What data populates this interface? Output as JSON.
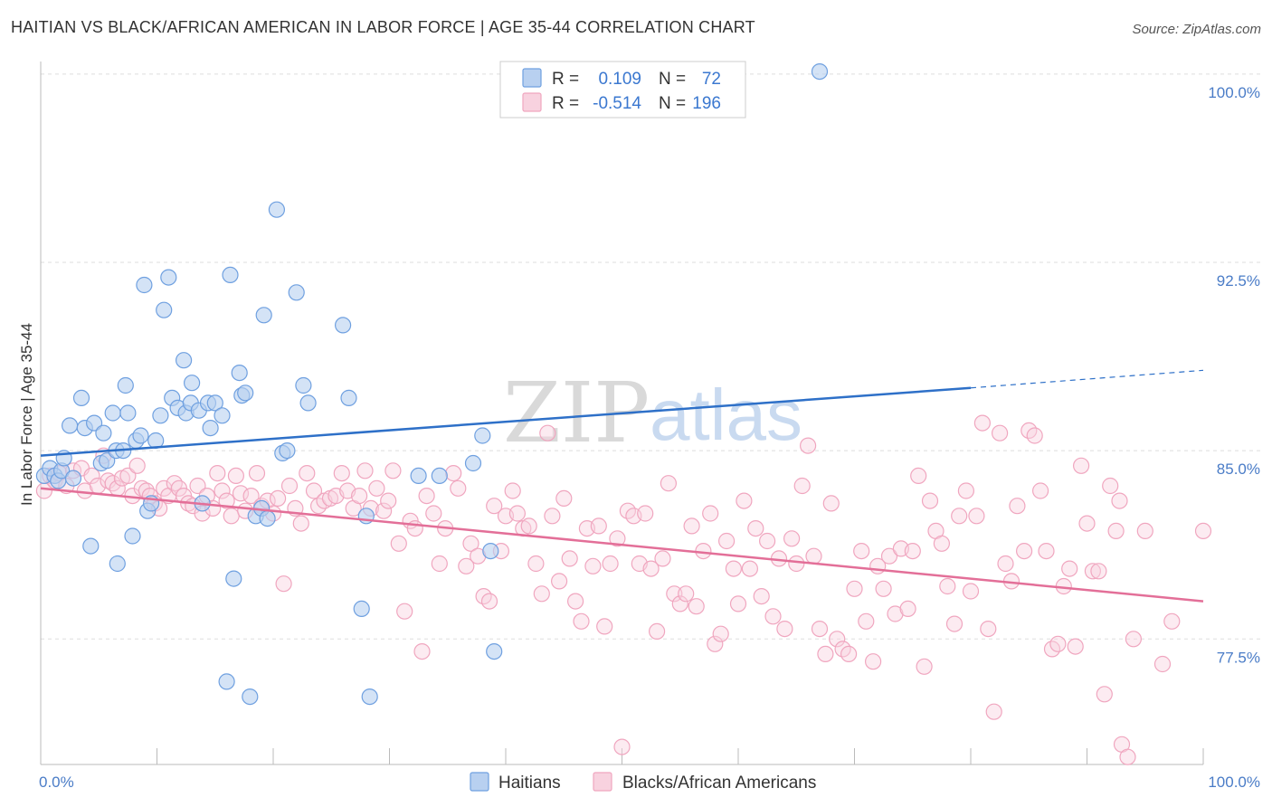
{
  "chart_data": {
    "type": "scatter",
    "title": "HAITIAN VS BLACK/AFRICAN AMERICAN IN LABOR FORCE | AGE 35-44 CORRELATION CHART",
    "source": "Source: ZipAtlas.com",
    "ylabel": "In Labor Force | Age 35-44",
    "xlabel": "",
    "xlim": [
      0,
      100
    ],
    "ylim": [
      72.5,
      100.5
    ],
    "x_tick_labels": [
      "0.0%",
      "100.0%"
    ],
    "y_ticks": [
      {
        "value": 100.0,
        "label": "100.0%"
      },
      {
        "value": 92.5,
        "label": "92.5%"
      },
      {
        "value": 85.0,
        "label": "85.0%"
      },
      {
        "value": 77.5,
        "label": "77.5%"
      }
    ],
    "watermark": {
      "part1": "ZIP",
      "part2": "atlas"
    },
    "legend": [
      {
        "r_label": "R =",
        "r_value": "0.109",
        "n_label": "N =",
        "n_value": "72"
      },
      {
        "r_label": "R =",
        "r_value": "-0.514",
        "n_label": "N =",
        "n_value": "196"
      }
    ],
    "series": [
      {
        "name": "Haitians",
        "color": "#6fa0e0",
        "fill": "#b8d0f0",
        "trend": {
          "x0": 0,
          "y0": 84.8,
          "x1": 80,
          "y1": 87.5,
          "dash_to": 100,
          "dash_y": 88.2,
          "color": "#2e70c8"
        },
        "points": [
          [
            0.3,
            84.0
          ],
          [
            0.8,
            84.3
          ],
          [
            1.2,
            84.0
          ],
          [
            1.5,
            83.8
          ],
          [
            1.8,
            84.2
          ],
          [
            2.0,
            84.7
          ],
          [
            2.5,
            86.0
          ],
          [
            2.8,
            83.9
          ],
          [
            3.5,
            87.1
          ],
          [
            3.8,
            85.9
          ],
          [
            4.3,
            81.2
          ],
          [
            4.6,
            86.1
          ],
          [
            5.2,
            84.5
          ],
          [
            5.4,
            85.7
          ],
          [
            5.7,
            84.6
          ],
          [
            6.2,
            86.5
          ],
          [
            6.5,
            85.0
          ],
          [
            6.6,
            80.5
          ],
          [
            7.1,
            85.0
          ],
          [
            7.3,
            87.6
          ],
          [
            7.5,
            86.5
          ],
          [
            7.9,
            81.6
          ],
          [
            8.2,
            85.4
          ],
          [
            8.6,
            85.6
          ],
          [
            8.9,
            91.6
          ],
          [
            9.2,
            82.6
          ],
          [
            9.5,
            82.9
          ],
          [
            9.9,
            85.4
          ],
          [
            10.3,
            86.4
          ],
          [
            10.6,
            90.6
          ],
          [
            11.0,
            91.9
          ],
          [
            11.3,
            87.1
          ],
          [
            11.8,
            86.7
          ],
          [
            12.3,
            88.6
          ],
          [
            12.5,
            86.5
          ],
          [
            12.9,
            86.9
          ],
          [
            13.0,
            87.7
          ],
          [
            13.6,
            86.6
          ],
          [
            13.9,
            82.9
          ],
          [
            14.4,
            86.9
          ],
          [
            14.6,
            85.9
          ],
          [
            15.0,
            86.9
          ],
          [
            15.6,
            86.4
          ],
          [
            16.0,
            75.8
          ],
          [
            16.3,
            92.0
          ],
          [
            16.6,
            79.9
          ],
          [
            17.1,
            88.1
          ],
          [
            17.3,
            87.2
          ],
          [
            17.6,
            87.3
          ],
          [
            18.0,
            75.2
          ],
          [
            18.5,
            82.4
          ],
          [
            19.0,
            82.7
          ],
          [
            19.2,
            90.4
          ],
          [
            19.5,
            82.3
          ],
          [
            20.3,
            94.6
          ],
          [
            20.8,
            84.9
          ],
          [
            21.2,
            85.0
          ],
          [
            22.0,
            91.3
          ],
          [
            22.6,
            87.6
          ],
          [
            23.0,
            86.9
          ],
          [
            26.0,
            90.0
          ],
          [
            26.5,
            87.1
          ],
          [
            27.6,
            78.7
          ],
          [
            28.0,
            82.4
          ],
          [
            28.3,
            75.2
          ],
          [
            32.5,
            84.0
          ],
          [
            34.3,
            84.0
          ],
          [
            37.2,
            84.5
          ],
          [
            38.0,
            85.6
          ],
          [
            38.7,
            81.0
          ],
          [
            39.0,
            77.0
          ],
          [
            67.0,
            100.1
          ]
        ]
      },
      {
        "name": "Blacks/African Americans",
        "color": "#f0a6bf",
        "fill": "#f8d2df",
        "trend": {
          "x0": 0,
          "y0": 83.5,
          "x1": 100,
          "y1": 79.0,
          "color": "#e36f98"
        },
        "points": [
          [
            0.3,
            83.4
          ],
          [
            0.8,
            84.0
          ],
          [
            1.2,
            83.8
          ],
          [
            1.6,
            84.1
          ],
          [
            2.2,
            83.6
          ],
          [
            2.8,
            84.2
          ],
          [
            3.5,
            84.3
          ],
          [
            3.8,
            83.4
          ],
          [
            4.4,
            84.0
          ],
          [
            4.9,
            83.6
          ],
          [
            5.4,
            84.8
          ],
          [
            5.8,
            83.8
          ],
          [
            6.2,
            83.7
          ],
          [
            6.6,
            83.5
          ],
          [
            7.0,
            83.9
          ],
          [
            7.5,
            84.0
          ],
          [
            7.9,
            83.2
          ],
          [
            8.3,
            84.4
          ],
          [
            8.7,
            83.5
          ],
          [
            9.1,
            83.4
          ],
          [
            9.4,
            83.2
          ],
          [
            9.8,
            82.9
          ],
          [
            10.2,
            82.7
          ],
          [
            10.6,
            83.5
          ],
          [
            11.0,
            83.2
          ],
          [
            11.5,
            83.7
          ],
          [
            11.9,
            83.5
          ],
          [
            12.3,
            83.2
          ],
          [
            12.7,
            82.9
          ],
          [
            13.1,
            82.8
          ],
          [
            13.5,
            83.6
          ],
          [
            13.9,
            82.5
          ],
          [
            14.3,
            83.2
          ],
          [
            14.8,
            82.7
          ],
          [
            15.2,
            84.1
          ],
          [
            15.6,
            83.4
          ],
          [
            16.0,
            83.0
          ],
          [
            16.4,
            82.4
          ],
          [
            16.8,
            84.0
          ],
          [
            17.2,
            83.3
          ],
          [
            17.6,
            82.6
          ],
          [
            18.1,
            83.2
          ],
          [
            18.6,
            84.1
          ],
          [
            19.0,
            82.8
          ],
          [
            19.5,
            83.0
          ],
          [
            20.0,
            82.5
          ],
          [
            20.4,
            83.1
          ],
          [
            20.9,
            79.7
          ],
          [
            21.4,
            83.6
          ],
          [
            21.9,
            82.7
          ],
          [
            22.4,
            82.1
          ],
          [
            22.9,
            84.1
          ],
          [
            23.5,
            83.4
          ],
          [
            23.9,
            82.8
          ],
          [
            24.4,
            83.0
          ],
          [
            24.9,
            83.1
          ],
          [
            25.4,
            83.2
          ],
          [
            25.9,
            84.1
          ],
          [
            26.4,
            83.4
          ],
          [
            26.9,
            82.7
          ],
          [
            27.4,
            83.2
          ],
          [
            27.9,
            84.2
          ],
          [
            28.4,
            82.7
          ],
          [
            28.9,
            83.5
          ],
          [
            29.5,
            82.6
          ],
          [
            29.9,
            83.0
          ],
          [
            30.3,
            84.2
          ],
          [
            30.8,
            81.3
          ],
          [
            31.3,
            78.6
          ],
          [
            31.8,
            82.2
          ],
          [
            32.2,
            81.9
          ],
          [
            32.8,
            77.0
          ],
          [
            33.2,
            83.2
          ],
          [
            33.8,
            82.5
          ],
          [
            34.3,
            80.5
          ],
          [
            34.8,
            81.9
          ],
          [
            35.5,
            84.1
          ],
          [
            35.9,
            83.5
          ],
          [
            36.6,
            80.4
          ],
          [
            37.0,
            81.3
          ],
          [
            37.6,
            80.8
          ],
          [
            38.1,
            79.2
          ],
          [
            38.6,
            79.0
          ],
          [
            39.0,
            82.8
          ],
          [
            39.6,
            81.0
          ],
          [
            40.0,
            82.4
          ],
          [
            40.6,
            83.4
          ],
          [
            41.0,
            82.5
          ],
          [
            41.5,
            81.9
          ],
          [
            42.0,
            82.0
          ],
          [
            42.6,
            80.5
          ],
          [
            43.1,
            79.3
          ],
          [
            43.6,
            85.7
          ],
          [
            44.0,
            82.4
          ],
          [
            44.6,
            79.8
          ],
          [
            45.0,
            83.1
          ],
          [
            45.5,
            80.7
          ],
          [
            46.0,
            79.0
          ],
          [
            46.5,
            78.2
          ],
          [
            47.0,
            81.9
          ],
          [
            47.5,
            80.4
          ],
          [
            48.0,
            82.0
          ],
          [
            48.5,
            78.0
          ],
          [
            49.0,
            80.5
          ],
          [
            49.6,
            81.5
          ],
          [
            50.0,
            73.2
          ],
          [
            50.5,
            82.6
          ],
          [
            51.0,
            82.4
          ],
          [
            51.5,
            80.5
          ],
          [
            52.0,
            82.5
          ],
          [
            52.5,
            80.3
          ],
          [
            53.0,
            77.8
          ],
          [
            53.5,
            80.7
          ],
          [
            54.0,
            83.7
          ],
          [
            54.5,
            79.3
          ],
          [
            55.0,
            78.9
          ],
          [
            55.5,
            79.3
          ],
          [
            56.0,
            82.0
          ],
          [
            56.4,
            78.8
          ],
          [
            57.0,
            81.0
          ],
          [
            57.6,
            82.5
          ],
          [
            58.0,
            77.3
          ],
          [
            58.5,
            77.7
          ],
          [
            59.0,
            81.4
          ],
          [
            59.6,
            80.3
          ],
          [
            60.0,
            78.9
          ],
          [
            60.5,
            83.0
          ],
          [
            61.0,
            80.3
          ],
          [
            61.5,
            81.9
          ],
          [
            62.0,
            79.2
          ],
          [
            62.5,
            81.4
          ],
          [
            63.0,
            78.4
          ],
          [
            63.5,
            80.7
          ],
          [
            64.0,
            77.9
          ],
          [
            64.6,
            81.5
          ],
          [
            65.0,
            80.5
          ],
          [
            65.5,
            83.6
          ],
          [
            66.0,
            85.2
          ],
          [
            66.5,
            80.8
          ],
          [
            67.0,
            77.9
          ],
          [
            67.5,
            76.9
          ],
          [
            68.0,
            82.9
          ],
          [
            68.5,
            77.5
          ],
          [
            69.0,
            77.1
          ],
          [
            69.5,
            76.9
          ],
          [
            70.0,
            79.5
          ],
          [
            70.6,
            81.0
          ],
          [
            71.0,
            78.2
          ],
          [
            71.6,
            76.6
          ],
          [
            72.0,
            80.4
          ],
          [
            72.5,
            79.5
          ],
          [
            73.0,
            80.8
          ],
          [
            73.5,
            78.5
          ],
          [
            74.0,
            81.1
          ],
          [
            74.6,
            78.7
          ],
          [
            75.0,
            81.0
          ],
          [
            75.5,
            84.0
          ],
          [
            76.0,
            76.4
          ],
          [
            76.5,
            83.0
          ],
          [
            77.0,
            81.8
          ],
          [
            77.5,
            81.3
          ],
          [
            78.0,
            79.6
          ],
          [
            78.6,
            78.1
          ],
          [
            79.0,
            82.4
          ],
          [
            79.6,
            83.4
          ],
          [
            80.0,
            79.4
          ],
          [
            80.5,
            82.4
          ],
          [
            81.0,
            86.1
          ],
          [
            81.5,
            77.9
          ],
          [
            82.0,
            74.6
          ],
          [
            82.5,
            85.7
          ],
          [
            83.0,
            80.5
          ],
          [
            83.5,
            79.8
          ],
          [
            84.0,
            82.8
          ],
          [
            84.6,
            81.0
          ],
          [
            85.0,
            85.8
          ],
          [
            85.5,
            85.6
          ],
          [
            86.0,
            83.4
          ],
          [
            86.5,
            81.0
          ],
          [
            87.0,
            77.1
          ],
          [
            87.5,
            77.3
          ],
          [
            88.0,
            79.6
          ],
          [
            88.5,
            80.3
          ],
          [
            89.0,
            77.2
          ],
          [
            89.5,
            84.4
          ],
          [
            90.0,
            82.1
          ],
          [
            90.5,
            80.2
          ],
          [
            91.0,
            80.2
          ],
          [
            91.5,
            75.3
          ],
          [
            92.0,
            83.6
          ],
          [
            92.5,
            81.8
          ],
          [
            92.8,
            83.0
          ],
          [
            93.0,
            73.3
          ],
          [
            93.5,
            72.8
          ],
          [
            94.0,
            77.5
          ],
          [
            95.0,
            81.8
          ],
          [
            96.5,
            76.5
          ],
          [
            97.3,
            78.2
          ],
          [
            100.0,
            81.8
          ]
        ]
      }
    ]
  }
}
